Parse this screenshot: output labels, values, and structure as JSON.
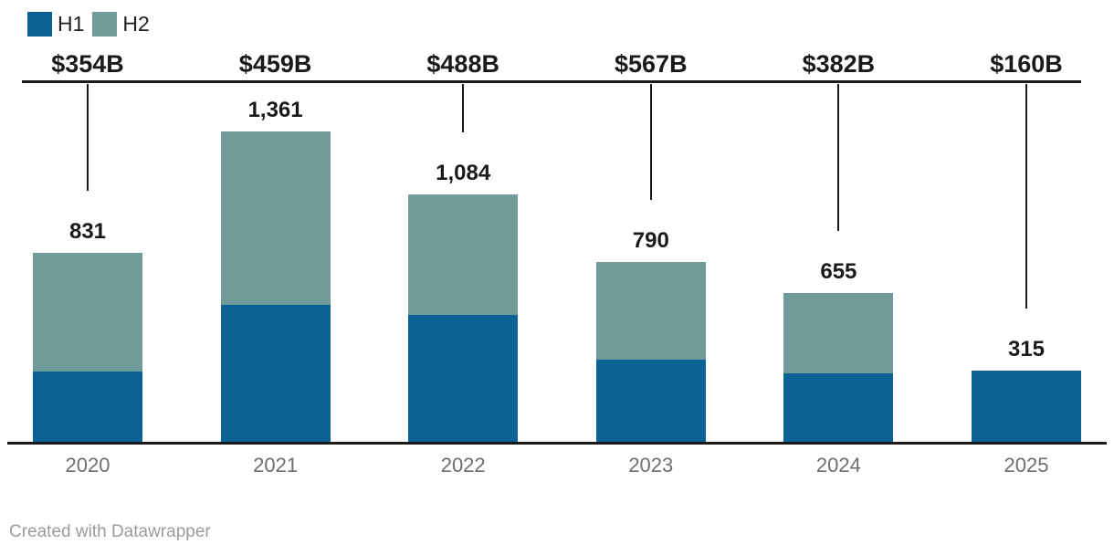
{
  "legend": {
    "items": [
      {
        "label": "H1",
        "color": "#0d6295"
      },
      {
        "label": "H2",
        "color": "#6f9b99"
      }
    ]
  },
  "footer": {
    "attribution": "Created with Datawrapper"
  },
  "chart_data": {
    "type": "bar",
    "stacked": true,
    "title": "",
    "xlabel": "",
    "ylabel": "",
    "categories": [
      "2020",
      "2021",
      "2022",
      "2023",
      "2024",
      "2025"
    ],
    "series": [
      {
        "name": "H1",
        "color": "#0d6295",
        "values": [
          310,
          603,
          560,
          362,
          303,
          315
        ]
      },
      {
        "name": "H2",
        "color": "#6f9b99",
        "values": [
          521,
          758,
          524,
          428,
          352,
          0
        ]
      }
    ],
    "totals_values": [
      831,
      1361,
      1084,
      790,
      655,
      315
    ],
    "totals_labels": [
      "831",
      "1,361",
      "1,084",
      "790",
      "655",
      "315"
    ],
    "value_line_labels": [
      "$354B",
      "$459B",
      "$488B",
      "$567B",
      "$382B",
      "$160B"
    ],
    "legend_position": "top-left",
    "grid": false,
    "ylim": [
      0,
      1450
    ],
    "colors": {
      "h1": "#0d6295",
      "h2": "#6f9b99",
      "axis_line": "#1a1a1a",
      "label_dark": "#1a1a1a",
      "year_gray": "#6e6e6e",
      "attribution_gray": "#9b9b9b"
    }
  }
}
